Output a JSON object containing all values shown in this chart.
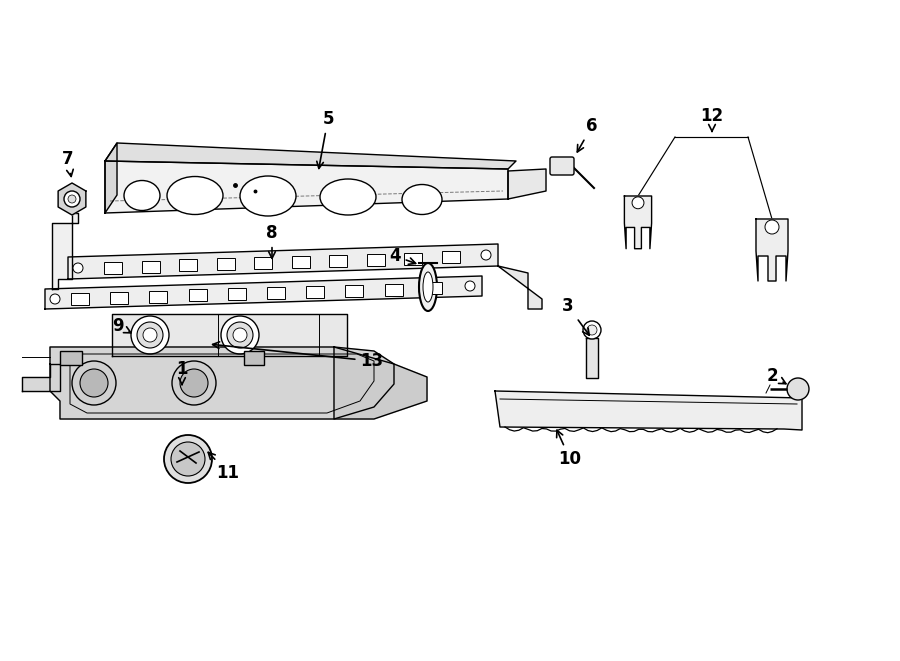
{
  "bg_color": "#ffffff",
  "line_color": "#000000",
  "label_fontsize": 12,
  "fig_width": 9.0,
  "fig_height": 6.61
}
